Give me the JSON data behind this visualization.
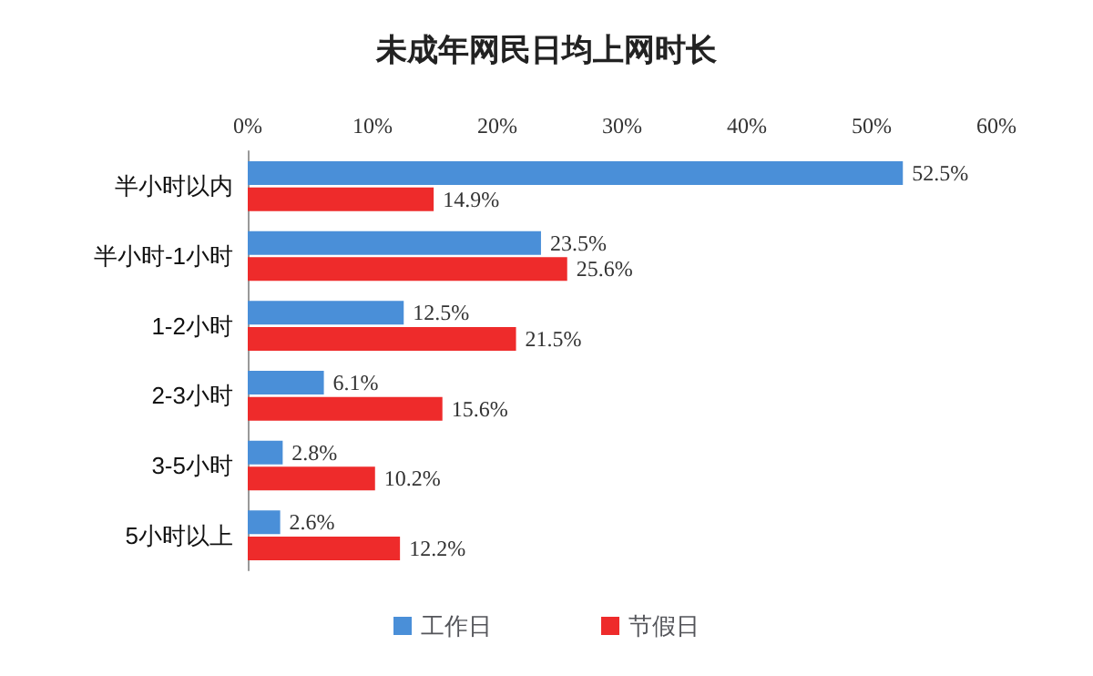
{
  "chart_data": {
    "type": "bar",
    "orientation": "horizontal",
    "title": "未成年网民日均上网时长",
    "categories": [
      "半小时以内",
      "半小时-1小时",
      "1-2小时",
      "2-3小时",
      "3-5小时",
      "5小时以上"
    ],
    "series": [
      {
        "name": "工作日",
        "color": "#4a8fd8",
        "values": [
          52.5,
          23.5,
          12.5,
          6.1,
          2.8,
          2.6
        ],
        "value_labels": [
          "52.5%",
          "23.5%",
          "12.5%",
          "6.1%",
          "2.8%",
          "2.6%"
        ]
      },
      {
        "name": "节假日",
        "color": "#ee2b2b",
        "values": [
          14.9,
          25.6,
          21.5,
          15.6,
          10.2,
          12.2
        ],
        "value_labels": [
          "14.9%",
          "25.6%",
          "21.5%",
          "15.6%",
          "10.2%",
          "12.2%"
        ]
      }
    ],
    "xlim": [
      0,
      60
    ],
    "xticks": [
      {
        "value": 0,
        "label": "0%"
      },
      {
        "value": 10,
        "label": "10%"
      },
      {
        "value": 20,
        "label": "20%"
      },
      {
        "value": 30,
        "label": "30%"
      },
      {
        "value": 40,
        "label": "40%"
      },
      {
        "value": 50,
        "label": "50%"
      },
      {
        "value": 60,
        "label": "60%"
      }
    ],
    "grid": false,
    "legend": "bottom"
  }
}
